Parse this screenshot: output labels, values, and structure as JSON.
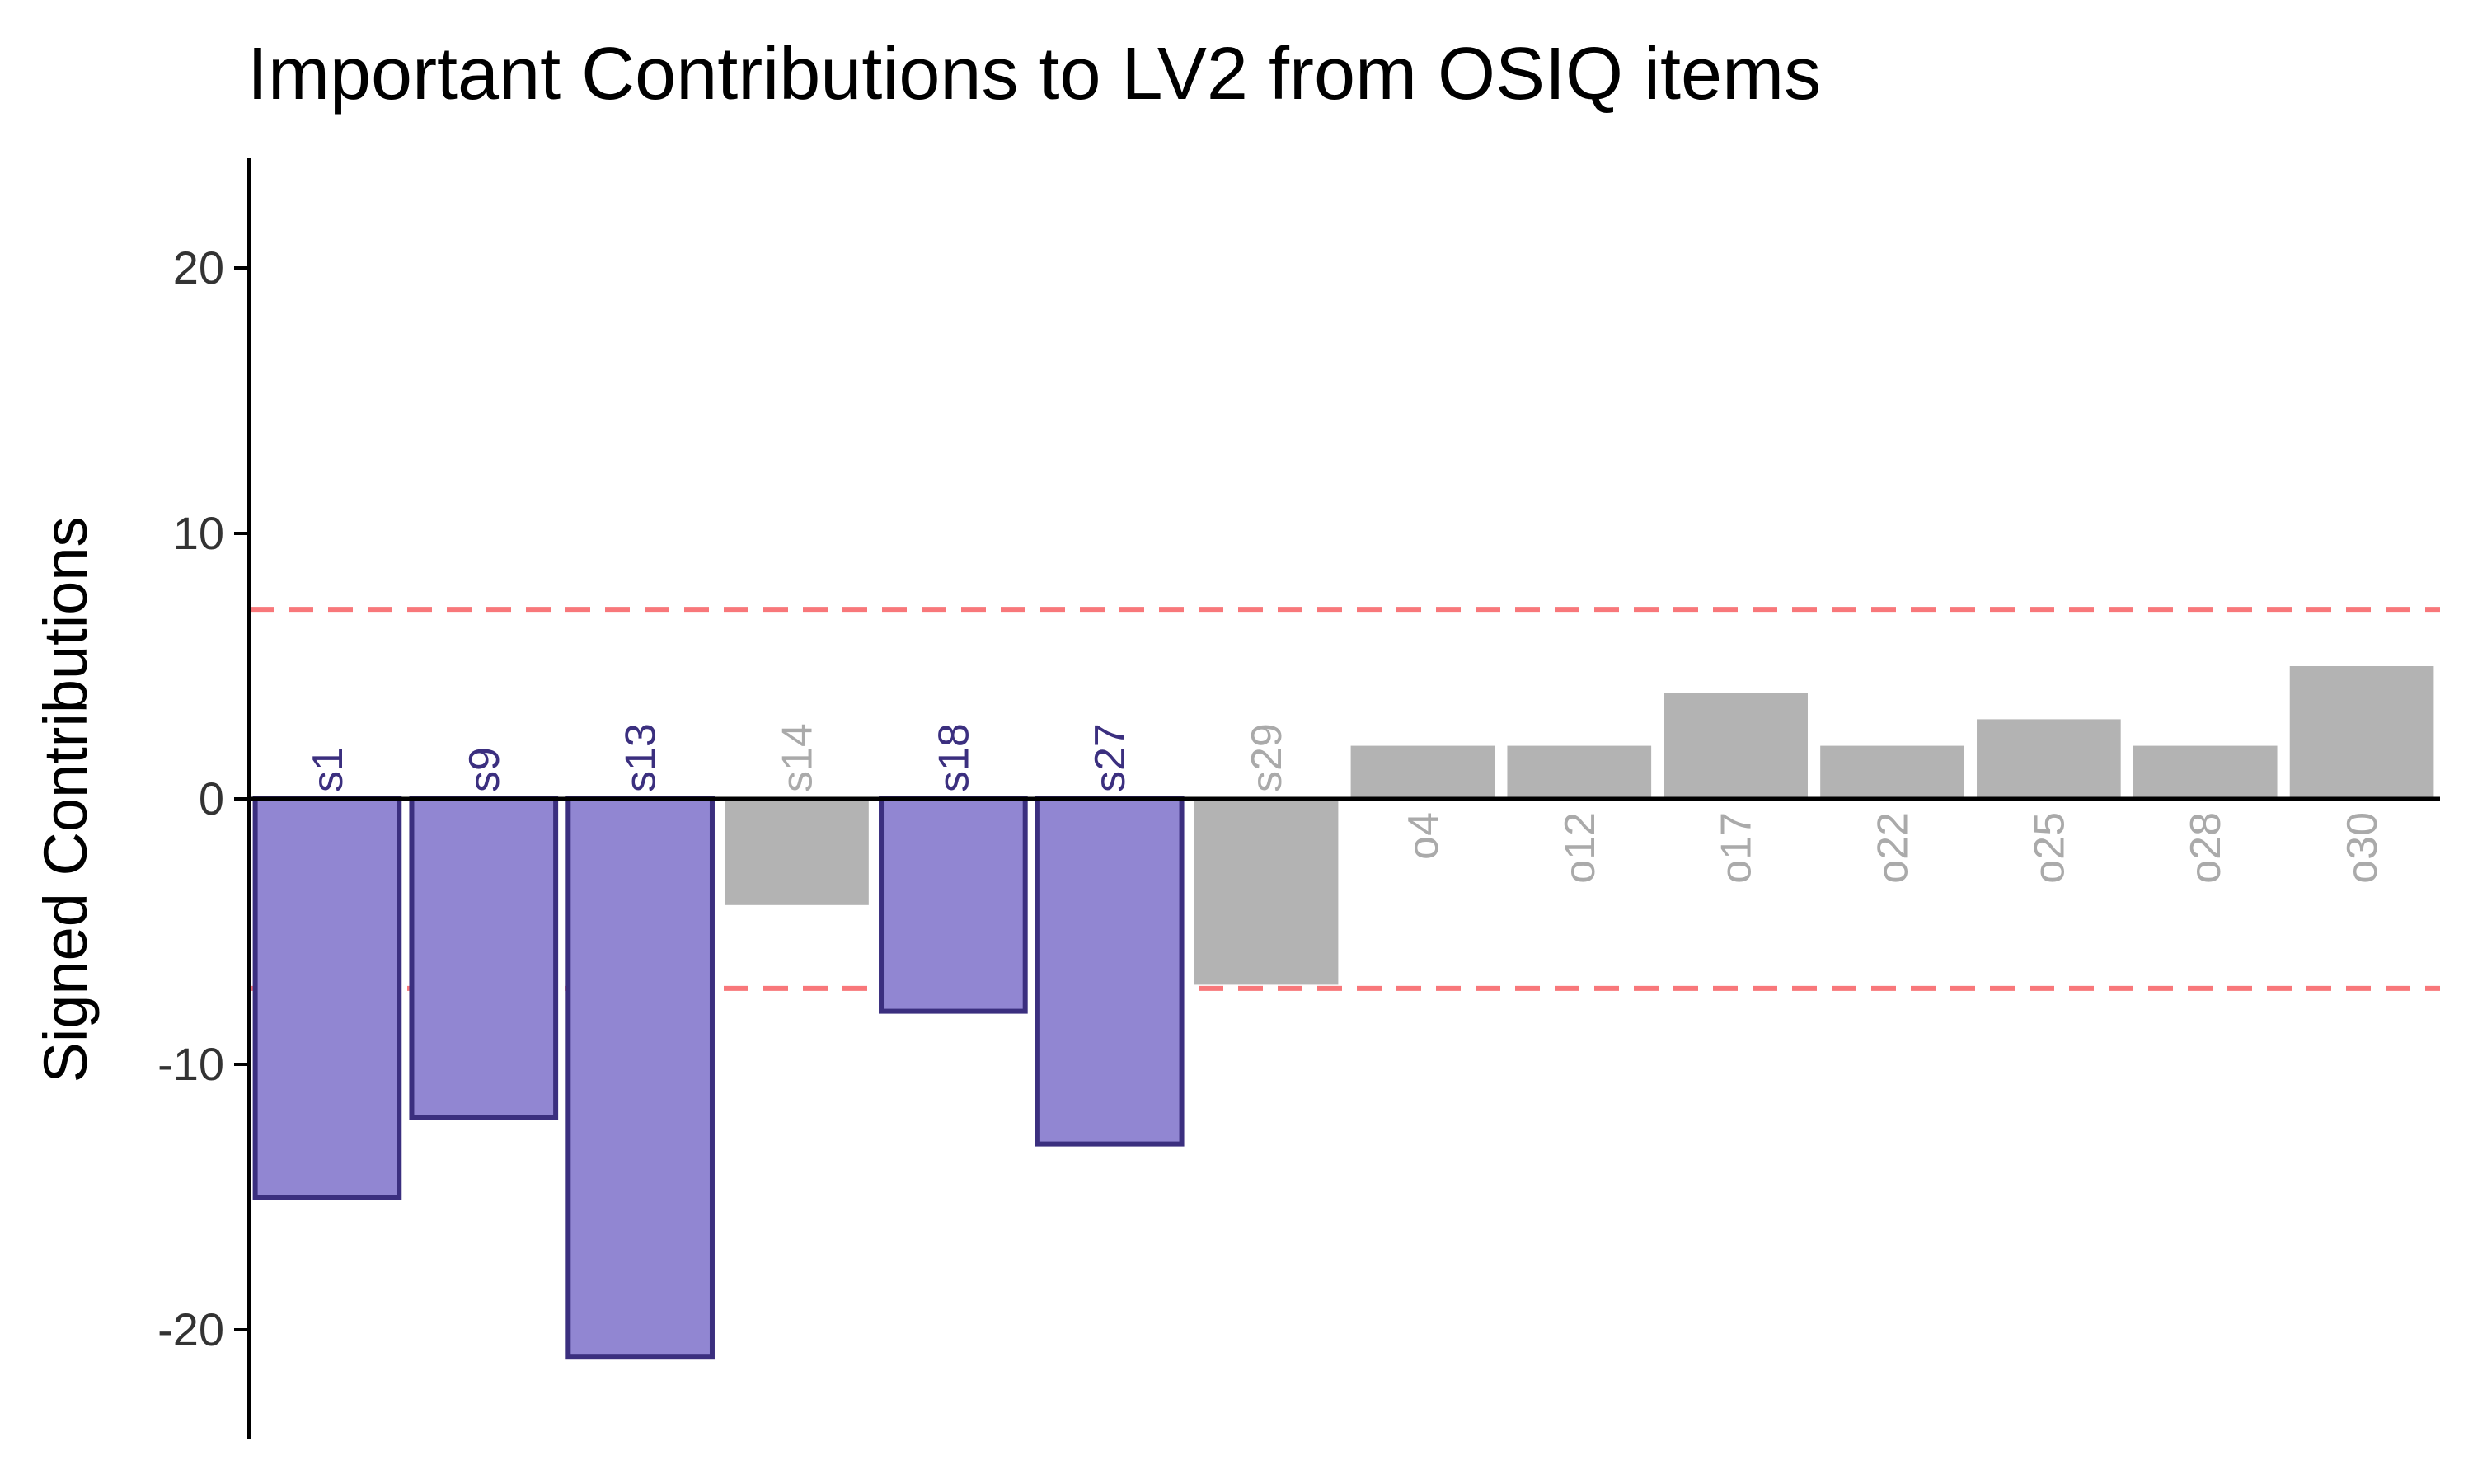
{
  "chart_data": {
    "type": "bar",
    "title": "Important Contributions to LV2 from OSIQ items",
    "xlabel": "",
    "ylabel": "Signed Contributions",
    "ylim": [
      -24,
      24
    ],
    "yticks": [
      20,
      10,
      0,
      -10,
      -20
    ],
    "ytick_labels": [
      "20",
      "10",
      "0",
      "-10",
      "-20"
    ],
    "threshold": 7.14,
    "categories": [
      "s1",
      "s9",
      "s13",
      "s14",
      "s18",
      "s27",
      "s29",
      "o4",
      "o12",
      "o17",
      "o22",
      "o25",
      "o28",
      "o30"
    ],
    "values": [
      -15,
      -12,
      -21,
      -4,
      -8,
      -13,
      -7,
      2,
      2,
      4,
      2,
      3,
      2,
      5
    ],
    "important": [
      true,
      true,
      true,
      false,
      true,
      true,
      false,
      false,
      false,
      false,
      false,
      false,
      false,
      false
    ],
    "grid": false,
    "legend": "none",
    "colors": {
      "important_fill": "#9186d2",
      "important_stroke": "#3b2f7f",
      "important_label": "#3b2f7f",
      "other_fill": "#b3b3b3",
      "other_label": "#aaaaaa",
      "threshold_line": "#f8777a",
      "axis": "#000000",
      "tick_text": "#333333"
    }
  }
}
